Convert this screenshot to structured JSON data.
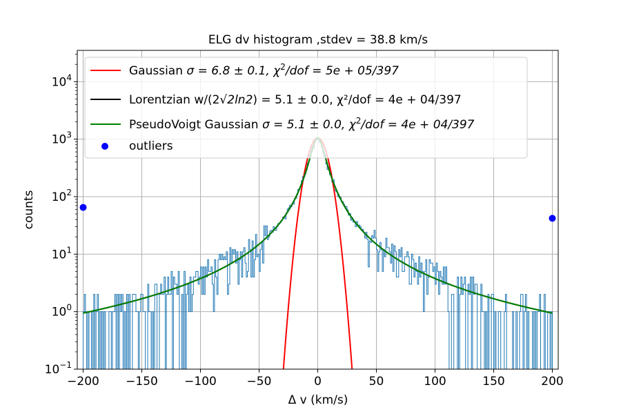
{
  "chart_data": {
    "type": "line",
    "title": "ELG dv histogram ,stdev = 38.8 km/s",
    "xlabel": "Δ v (km/s)",
    "ylabel": "counts",
    "xlim": [
      -205,
      205
    ],
    "ylim": [
      0.1,
      35000
    ],
    "yscale": "log",
    "grid": true,
    "legend_placement": "upper-left",
    "x_ticks": [
      -200,
      -150,
      -100,
      -50,
      0,
      50,
      100,
      150,
      200
    ],
    "x_tick_labels": [
      "−200",
      "−150",
      "−100",
      "−50",
      "0",
      "50",
      "100",
      "150",
      "200"
    ],
    "y_ticks": [
      0.1,
      1,
      10,
      100,
      1000,
      10000
    ],
    "y_tick_labels": [
      {
        "base": "10",
        "exp": "−1"
      },
      {
        "base": "10",
        "exp": "0"
      },
      {
        "base": "10",
        "exp": "1"
      },
      {
        "base": "10",
        "exp": "2"
      },
      {
        "base": "10",
        "exp": "3"
      },
      {
        "base": "10",
        "exp": "4"
      }
    ],
    "series": [
      {
        "name": "Gaussian σ = 6.8 ± 0.1, χ²/dof = 5e + 05/397",
        "kind": "gaussian",
        "color": "#ff0000",
        "amplitude": 1050,
        "center": 0,
        "sigma": 6.8,
        "x_range": [
          -200,
          200
        ]
      },
      {
        "name": "Lorentzian w/(2√(2ln2)) = 5.1 ± 0.0, χ²/dof = 4e + 04/397",
        "kind": "lorentzian",
        "color": "#000000",
        "amplitude": 1050,
        "center": 0,
        "hwhm": 6.0,
        "x_range": [
          -200,
          200
        ]
      },
      {
        "name": "PseudoVoigt Gaussian σ = 5.1 ± 0.0, χ²/dof = 4e + 04/397",
        "kind": "lorentzian",
        "color": "#008000",
        "amplitude": 1050,
        "center": 0,
        "hwhm": 6.0,
        "x_range": [
          -200,
          200
        ]
      },
      {
        "name": "outliers",
        "kind": "scatter",
        "color": "#0000ff",
        "points": [
          {
            "x": -200,
            "y": 65
          },
          {
            "x": 200,
            "y": 42
          }
        ]
      }
    ],
    "histogram": {
      "color": "#1f77b4",
      "bin_width": 1,
      "x_range": [
        -200,
        200
      ],
      "shape": "lorentzian-with-scatter",
      "amplitude": 1050,
      "hwhm": 6.0,
      "floor": 0.1
    }
  },
  "legend": {
    "entries": [
      {
        "prefix": "Gaussian ",
        "math": "σ = 6.8 ± 0.1, χ",
        "sup": "2",
        "suffix": "/dof = 5e + 05/397"
      },
      {
        "prefix": "Lorentzian w/(2",
        "math": "√2ln2",
        "sup": "",
        "suffix": ") = 5.1 ± 0.0, χ²/dof = 4e + 04/397"
      },
      {
        "prefix": "PseudoVoigt Gaussian ",
        "math": "σ = 5.1 ± 0.0, χ",
        "sup": "2",
        "suffix": "/dof = 4e + 04/397"
      },
      {
        "prefix": "outliers",
        "math": "",
        "sup": "",
        "suffix": ""
      }
    ]
  },
  "colors": {
    "gaussian": "#ff0000",
    "lorentzian": "#000000",
    "pseudovoigt": "#008000",
    "outliers": "#0000ff",
    "histogram": "#1f77b4",
    "grid": "#b0b0b0"
  }
}
